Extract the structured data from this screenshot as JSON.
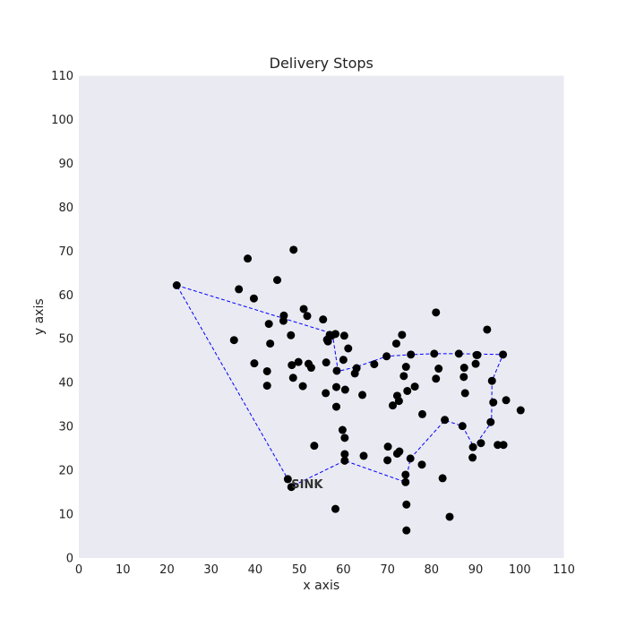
{
  "chart_data": {
    "type": "scatter",
    "title": "Delivery Stops",
    "xlabel": "x axis",
    "ylabel": "y axis",
    "xlim": [
      0,
      110
    ],
    "ylim": [
      0,
      110
    ],
    "xticks": [
      0,
      10,
      20,
      30,
      40,
      50,
      60,
      70,
      80,
      90,
      100,
      110
    ],
    "yticks": [
      0,
      10,
      20,
      30,
      40,
      50,
      60,
      70,
      80,
      90,
      100,
      110
    ],
    "grid": false,
    "background_color": "#eaeaf2",
    "point_color": "#000000",
    "route_color": "#0000ff",
    "points": [
      [
        22.2,
        62.2
      ],
      [
        36.3,
        61.3
      ],
      [
        38.3,
        68.3
      ],
      [
        39.7,
        59.2
      ],
      [
        35.2,
        49.7
      ],
      [
        39.8,
        44.4
      ],
      [
        42.7,
        42.6
      ],
      [
        42.7,
        39.3
      ],
      [
        43.4,
        48.9
      ],
      [
        43.1,
        53.4
      ],
      [
        45.0,
        63.4
      ],
      [
        46.5,
        55.3
      ],
      [
        46.4,
        54.1
      ],
      [
        48.1,
        50.8
      ],
      [
        48.7,
        70.3
      ],
      [
        48.3,
        44.0
      ],
      [
        48.6,
        41.1
      ],
      [
        49.8,
        44.7
      ],
      [
        50.8,
        39.2
      ],
      [
        51.0,
        56.8
      ],
      [
        51.8,
        55.2
      ],
      [
        52.1,
        44.3
      ],
      [
        52.7,
        43.4
      ],
      [
        53.4,
        25.6
      ],
      [
        55.4,
        54.4
      ],
      [
        56.0,
        37.6
      ],
      [
        56.1,
        44.6
      ],
      [
        56.3,
        49.8
      ],
      [
        56.5,
        49.4
      ],
      [
        56.9,
        50.9
      ],
      [
        57.3,
        50.7
      ],
      [
        58.2,
        51.1
      ],
      [
        58.5,
        42.7
      ],
      [
        58.4,
        39.0
      ],
      [
        58.4,
        34.5
      ],
      [
        60.0,
        45.2
      ],
      [
        60.2,
        50.7
      ],
      [
        60.4,
        38.4
      ],
      [
        61.1,
        47.8
      ],
      [
        59.8,
        29.2
      ],
      [
        60.3,
        27.4
      ],
      [
        60.3,
        23.7
      ],
      [
        60.3,
        22.2
      ],
      [
        62.6,
        42.1
      ],
      [
        63.0,
        43.3
      ],
      [
        64.3,
        37.2
      ],
      [
        64.6,
        23.3
      ],
      [
        67.0,
        44.2
      ],
      [
        69.8,
        46.0
      ],
      [
        70.1,
        25.4
      ],
      [
        70.0,
        22.3
      ],
      [
        71.2,
        34.8
      ],
      [
        72.0,
        48.9
      ],
      [
        72.2,
        37.0
      ],
      [
        72.6,
        35.8
      ],
      [
        72.2,
        23.8
      ],
      [
        72.7,
        24.3
      ],
      [
        73.3,
        50.9
      ],
      [
        73.7,
        41.5
      ],
      [
        74.2,
        43.6
      ],
      [
        74.5,
        38.1
      ],
      [
        75.3,
        46.4
      ],
      [
        75.2,
        22.7
      ],
      [
        76.2,
        39.1
      ],
      [
        74.1,
        19.0
      ],
      [
        74.1,
        17.3
      ],
      [
        74.3,
        12.2
      ],
      [
        74.3,
        6.3
      ],
      [
        77.9,
        32.8
      ],
      [
        77.8,
        21.3
      ],
      [
        80.6,
        46.6
      ],
      [
        81.0,
        56.0
      ],
      [
        81.0,
        40.9
      ],
      [
        81.6,
        43.2
      ],
      [
        82.5,
        18.2
      ],
      [
        83.0,
        31.5
      ],
      [
        84.1,
        9.4
      ],
      [
        86.2,
        46.6
      ],
      [
        87.0,
        30.1
      ],
      [
        87.3,
        41.3
      ],
      [
        87.4,
        43.4
      ],
      [
        87.6,
        37.6
      ],
      [
        89.4,
        25.3
      ],
      [
        89.3,
        22.9
      ],
      [
        90.0,
        44.3
      ],
      [
        90.2,
        46.3
      ],
      [
        90.4,
        46.3
      ],
      [
        91.2,
        26.2
      ],
      [
        92.6,
        52.1
      ],
      [
        93.4,
        31.0
      ],
      [
        93.7,
        40.4
      ],
      [
        94.0,
        35.5
      ],
      [
        95.0,
        25.8
      ],
      [
        96.3,
        25.8
      ],
      [
        96.2,
        46.4
      ],
      [
        96.9,
        36.0
      ],
      [
        100.2,
        33.7
      ],
      [
        47.4,
        18.0
      ],
      [
        48.2,
        16.2
      ],
      [
        58.2,
        11.2
      ]
    ],
    "route": [
      [
        22.2,
        62.2
      ],
      [
        57.5,
        51.2
      ],
      [
        58.8,
        42.6
      ],
      [
        63.0,
        43.6
      ],
      [
        69.8,
        46.0
      ],
      [
        75.3,
        46.4
      ],
      [
        80.6,
        46.6
      ],
      [
        86.2,
        46.6
      ],
      [
        96.2,
        46.4
      ],
      [
        93.7,
        40.4
      ],
      [
        93.6,
        31.0
      ],
      [
        89.6,
        25.3
      ],
      [
        87.0,
        30.1
      ],
      [
        83.0,
        31.4
      ],
      [
        75.2,
        22.7
      ],
      [
        74.1,
        17.3
      ],
      [
        60.3,
        22.2
      ],
      [
        48.2,
        16.3
      ],
      [
        47.4,
        18.0
      ],
      [
        22.2,
        62.2
      ]
    ],
    "annotations": [
      {
        "text": "SINK",
        "x": 48.2,
        "y": 16.3
      }
    ]
  }
}
